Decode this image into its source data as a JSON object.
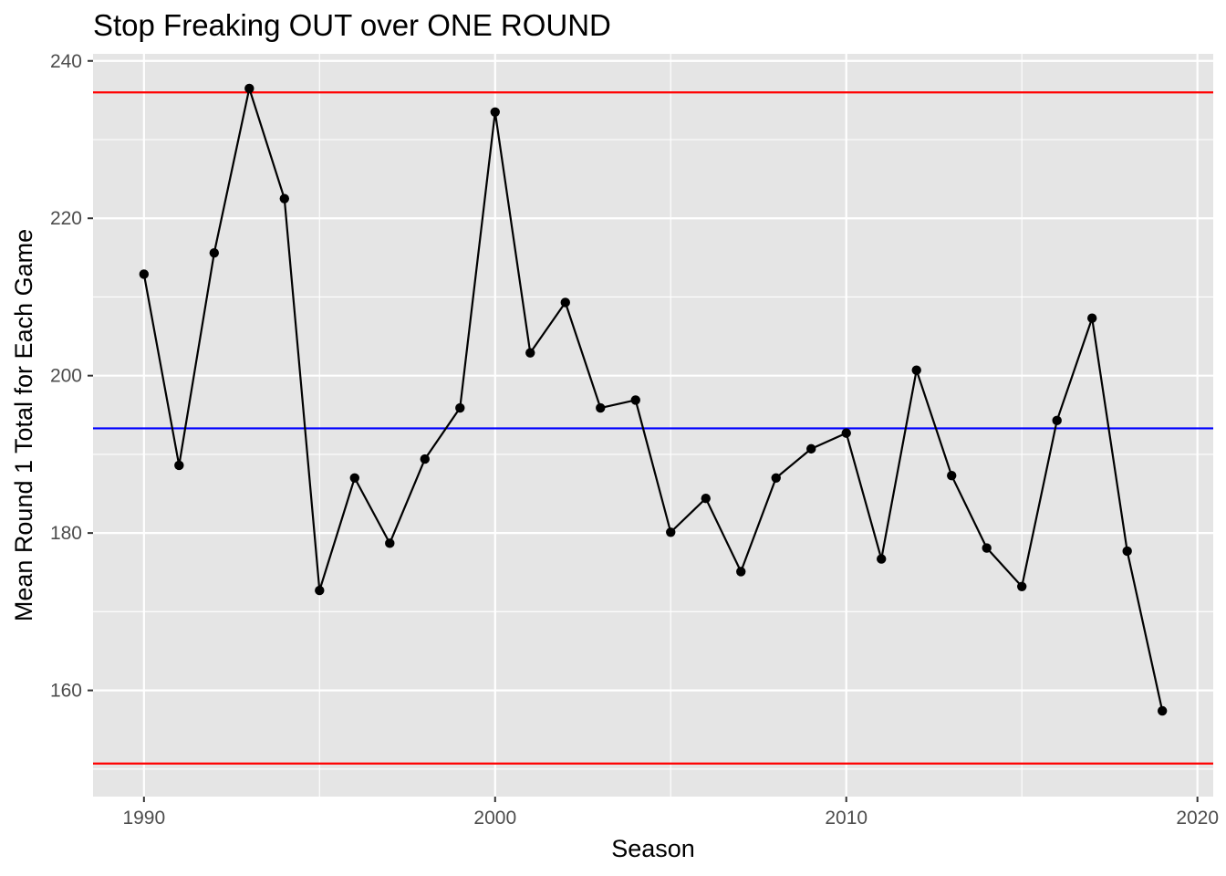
{
  "chart_data": {
    "type": "line",
    "title": "Stop Freaking OUT over ONE ROUND",
    "xlabel": "Season",
    "ylabel": "Mean Round 1 Total for Each Game",
    "xlim": [
      1988.55,
      2020.45
    ],
    "ylim": [
      146.5,
      240.9
    ],
    "x_ticks": [
      1990,
      2000,
      2010,
      2020
    ],
    "y_ticks": [
      160,
      180,
      200,
      220,
      240
    ],
    "grid": true,
    "legend": "none",
    "series": [
      {
        "color": "#000000",
        "x": [
          1990,
          1991,
          1992,
          1993,
          1994,
          1995,
          1996,
          1997,
          1998,
          1999,
          2000,
          2001,
          2002,
          2003,
          2004,
          2005,
          2006,
          2007,
          2008,
          2009,
          2010,
          2011,
          2012,
          2013,
          2014,
          2015,
          2016,
          2017,
          2018,
          2019
        ],
        "y": [
          212.9,
          188.6,
          215.6,
          236.5,
          222.5,
          172.7,
          187.0,
          178.7,
          189.4,
          195.9,
          233.5,
          202.9,
          209.3,
          195.9,
          196.9,
          180.1,
          184.4,
          175.1,
          187.0,
          190.7,
          192.7,
          176.7,
          200.7,
          187.3,
          178.1,
          173.2,
          194.3,
          207.3,
          177.7,
          157.4
        ]
      }
    ],
    "reference_lines": [
      {
        "orientation": "horizontal",
        "y": 236.0,
        "color": "#ff0000"
      },
      {
        "orientation": "horizontal",
        "y": 193.3,
        "color": "#0000ff"
      },
      {
        "orientation": "horizontal",
        "y": 150.7,
        "color": "#ff0000"
      }
    ],
    "colors": {
      "panel_background": "#e5e5e5",
      "grid": "#ffffff",
      "tick_label": "#4d4d4d",
      "tick_mark": "#333333"
    }
  }
}
